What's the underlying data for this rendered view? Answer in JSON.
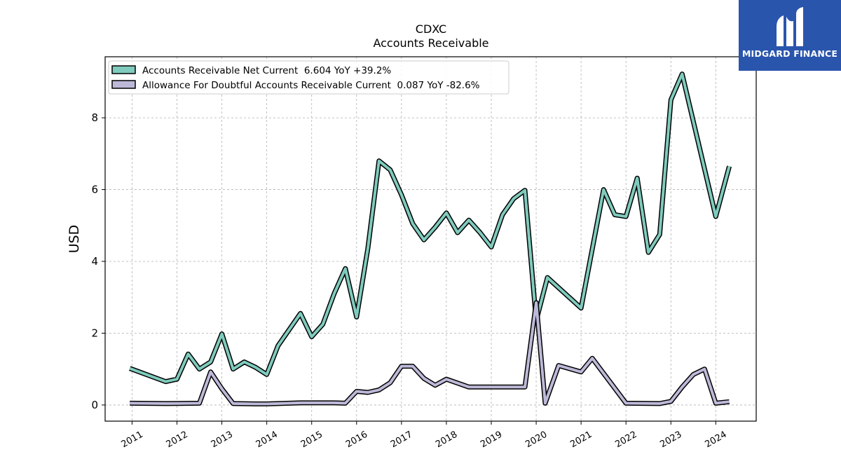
{
  "chart_data": {
    "type": "line",
    "title": "CDXC",
    "subtitle": "Accounts Receivable",
    "ylabel": "USD",
    "xlabel": "",
    "ylim": [
      -0.45,
      9.7
    ],
    "xlim": [
      2010.4,
      2024.9
    ],
    "yticks": [
      0,
      2,
      4,
      6,
      8
    ],
    "xticks": [
      "2011",
      "2012",
      "2013",
      "2014",
      "2015",
      "2016",
      "2017",
      "2018",
      "2019",
      "2020",
      "2021",
      "2022",
      "2023",
      "2024"
    ],
    "grid": true,
    "legend_position": "top-left",
    "series": [
      {
        "name": "Accounts Receivable Net Current  6.604 YoY +39.2%",
        "color": "#7fcbbd",
        "points": [
          [
            2010.95,
            1.02
          ],
          [
            2011.75,
            0.65
          ],
          [
            2012.0,
            0.72
          ],
          [
            2012.25,
            1.42
          ],
          [
            2012.5,
            1.0
          ],
          [
            2012.75,
            1.2
          ],
          [
            2013.0,
            1.98
          ],
          [
            2013.25,
            1.0
          ],
          [
            2013.5,
            1.2
          ],
          [
            2013.75,
            1.05
          ],
          [
            2014.0,
            0.85
          ],
          [
            2014.25,
            1.65
          ],
          [
            2014.5,
            2.1
          ],
          [
            2014.75,
            2.55
          ],
          [
            2015.0,
            1.9
          ],
          [
            2015.25,
            2.25
          ],
          [
            2015.5,
            3.1
          ],
          [
            2015.75,
            3.8
          ],
          [
            2016.0,
            2.45
          ],
          [
            2016.25,
            4.35
          ],
          [
            2016.5,
            6.8
          ],
          [
            2016.75,
            6.55
          ],
          [
            2017.0,
            5.85
          ],
          [
            2017.25,
            5.05
          ],
          [
            2017.5,
            4.6
          ],
          [
            2017.75,
            4.95
          ],
          [
            2018.0,
            5.35
          ],
          [
            2018.25,
            4.8
          ],
          [
            2018.5,
            5.15
          ],
          [
            2018.75,
            4.8
          ],
          [
            2019.0,
            4.4
          ],
          [
            2019.25,
            5.3
          ],
          [
            2019.5,
            5.75
          ],
          [
            2019.75,
            5.98
          ],
          [
            2020.0,
            2.35
          ],
          [
            2020.25,
            3.55
          ],
          [
            2021.0,
            2.7
          ],
          [
            2021.5,
            6.0
          ],
          [
            2021.75,
            5.3
          ],
          [
            2022.0,
            5.25
          ],
          [
            2022.25,
            6.32
          ],
          [
            2022.5,
            4.25
          ],
          [
            2022.75,
            4.75
          ],
          [
            2023.0,
            8.5
          ],
          [
            2023.25,
            9.22
          ],
          [
            2024.0,
            5.25
          ],
          [
            2024.3,
            6.65
          ]
        ]
      },
      {
        "name": "Allowance For Doubtful Accounts Receivable Current  0.087 YoY -82.6%",
        "color": "#bcb9d8",
        "points": [
          [
            2010.95,
            0.05
          ],
          [
            2011.75,
            0.04
          ],
          [
            2012.5,
            0.05
          ],
          [
            2012.75,
            0.92
          ],
          [
            2013.0,
            0.45
          ],
          [
            2013.25,
            0.04
          ],
          [
            2013.75,
            0.03
          ],
          [
            2014.0,
            0.03
          ],
          [
            2014.75,
            0.06
          ],
          [
            2015.5,
            0.06
          ],
          [
            2015.75,
            0.05
          ],
          [
            2016.0,
            0.38
          ],
          [
            2016.25,
            0.35
          ],
          [
            2016.5,
            0.42
          ],
          [
            2016.75,
            0.62
          ],
          [
            2017.0,
            1.08
          ],
          [
            2017.25,
            1.08
          ],
          [
            2017.5,
            0.74
          ],
          [
            2017.75,
            0.55
          ],
          [
            2018.0,
            0.72
          ],
          [
            2018.5,
            0.5
          ],
          [
            2019.75,
            0.5
          ],
          [
            2020.0,
            2.85
          ],
          [
            2020.2,
            0.05
          ],
          [
            2020.5,
            1.1
          ],
          [
            2021.0,
            0.92
          ],
          [
            2021.25,
            1.3
          ],
          [
            2022.0,
            0.05
          ],
          [
            2022.75,
            0.04
          ],
          [
            2023.0,
            0.1
          ],
          [
            2023.25,
            0.5
          ],
          [
            2023.5,
            0.85
          ],
          [
            2023.75,
            1.0
          ],
          [
            2024.0,
            0.05
          ],
          [
            2024.3,
            0.09
          ]
        ]
      }
    ]
  },
  "logo": {
    "text": "MIDGARD FINANCE",
    "color": "#2a55ad"
  }
}
